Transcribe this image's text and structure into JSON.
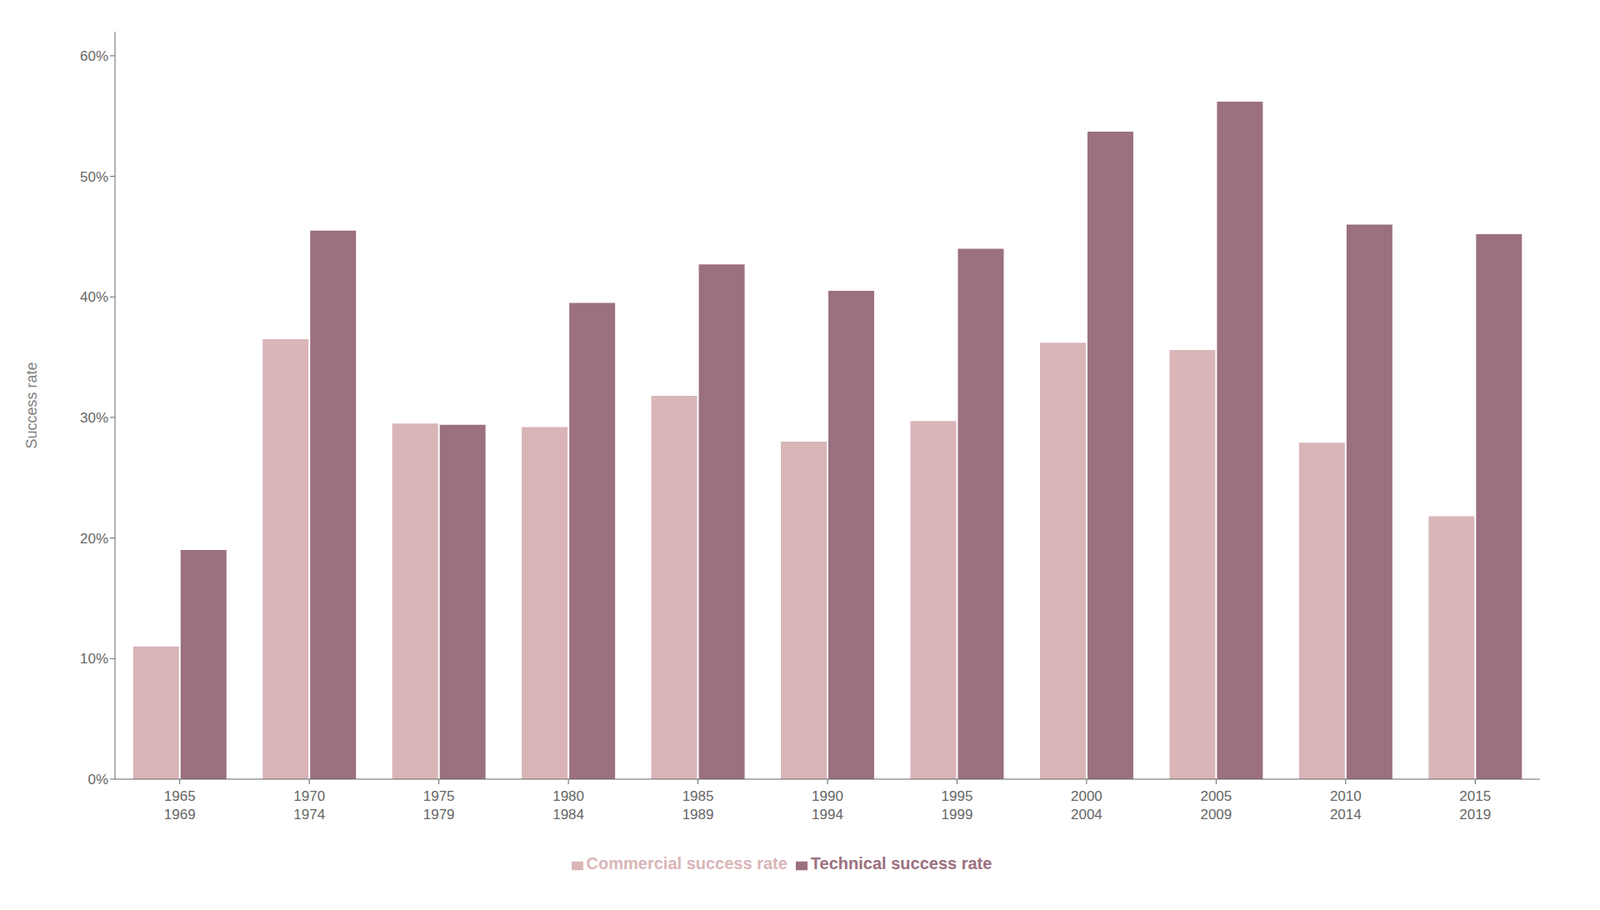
{
  "chart_data": {
    "type": "bar",
    "categories": [
      "1965\n1969",
      "1970\n1974",
      "1975\n1979",
      "1980\n1984",
      "1985\n1989",
      "1990\n1994",
      "1995\n1999",
      "2000\n2004",
      "2005\n2009",
      "2010\n2014",
      "2015\n2019"
    ],
    "series": [
      {
        "name": "Commercial success rate",
        "color": "#d9b5b8",
        "values": [
          0.11,
          0.365,
          0.295,
          0.292,
          0.318,
          0.28,
          0.297,
          0.362,
          0.356,
          0.279,
          0.218
        ]
      },
      {
        "name": "Technical success rate",
        "color": "#9b7080",
        "values": [
          0.19,
          0.455,
          0.294,
          0.395,
          0.427,
          0.405,
          0.44,
          0.537,
          0.562,
          0.46,
          0.452
        ]
      }
    ],
    "ylabel": "Success rate",
    "ylim": [
      0,
      0.62
    ],
    "yticks": [
      {
        "value": 0.0,
        "label": "0%"
      },
      {
        "value": 0.1,
        "label": "10%"
      },
      {
        "value": 0.2,
        "label": "20%"
      },
      {
        "value": 0.3,
        "label": "30%"
      },
      {
        "value": 0.4,
        "label": "40%"
      },
      {
        "value": 0.5,
        "label": "50%"
      },
      {
        "value": 0.6,
        "label": "60%"
      }
    ],
    "grid": false,
    "legend": "bottom"
  }
}
